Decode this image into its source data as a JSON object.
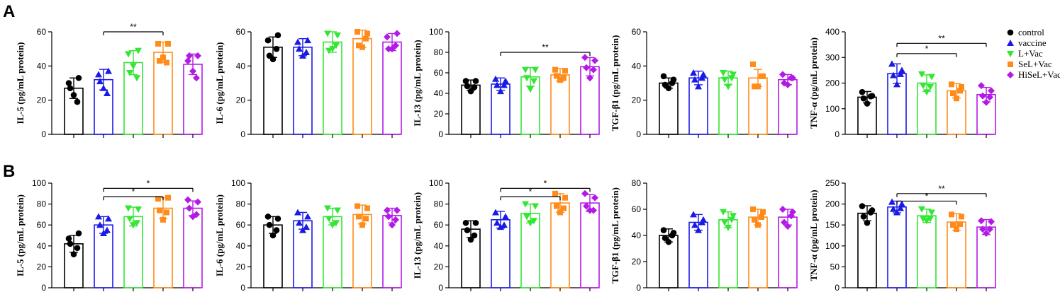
{
  "groups": [
    "control",
    "vaccine",
    "L+Vac",
    "SeL+Vac",
    "HiSeL+Vac"
  ],
  "colors": [
    "#000000",
    "#1a1ae6",
    "#33e633",
    "#ff8c1a",
    "#b31ae6"
  ],
  "markers": [
    "circle",
    "triangle-up",
    "triangle-down",
    "square",
    "diamond"
  ],
  "rows": [
    {
      "label": "A"
    },
    {
      "label": "B"
    }
  ],
  "chart_data": [
    {
      "row": 0,
      "col": 0,
      "type": "bar",
      "ylabel": "IL-5 (pg/mL protein)",
      "ylim": [
        0,
        60
      ],
      "ticks": [
        0,
        20,
        40,
        60
      ],
      "means": [
        27,
        32,
        42,
        48,
        41
      ],
      "sd": [
        6,
        6,
        7,
        6,
        6
      ],
      "points": [
        [
          23,
          30,
          33,
          27,
          19
        ],
        [
          27,
          35,
          37,
          31,
          24
        ],
        [
          40,
          47,
          49,
          36,
          33
        ],
        [
          45,
          53,
          53,
          43,
          42
        ],
        [
          37,
          43,
          46,
          46,
          33
        ]
      ],
      "brackets": [
        {
          "from": 1,
          "to": 3,
          "label": "**",
          "y": 60
        }
      ]
    },
    {
      "row": 0,
      "col": 1,
      "type": "bar",
      "ylabel": "IL-6 (pg/mL protein)",
      "ylim": [
        0,
        60
      ],
      "ticks": [
        0,
        20,
        40,
        60
      ],
      "means": [
        51,
        51,
        54,
        56,
        54
      ],
      "sd": [
        6,
        5,
        6,
        5,
        5
      ],
      "points": [
        [
          44,
          55,
          58,
          46,
          50
        ],
        [
          46,
          54,
          55,
          50,
          48
        ],
        [
          50,
          59,
          58,
          49,
          52
        ],
        [
          51,
          60,
          59,
          52,
          56
        ],
        [
          50,
          57,
          59,
          50,
          52
        ]
      ],
      "brackets": []
    },
    {
      "row": 0,
      "col": 2,
      "type": "bar",
      "ylabel": "IL-13 (pg/mL protein)",
      "ylim": [
        0,
        100
      ],
      "ticks": [
        0,
        20,
        40,
        60,
        80,
        100
      ],
      "means": [
        48,
        49,
        56,
        58,
        66
      ],
      "sd": [
        5,
        6,
        9,
        6,
        9
      ],
      "points": [
        [
          42,
          52,
          52,
          47,
          46
        ],
        [
          42,
          54,
          52,
          48,
          48
        ],
        [
          44,
          63,
          63,
          55,
          52
        ],
        [
          53,
          63,
          62,
          57,
          55
        ],
        [
          55,
          75,
          72,
          65,
          63
        ]
      ],
      "brackets": [
        {
          "from": 1,
          "to": 4,
          "label": "**",
          "y": 80
        }
      ]
    },
    {
      "row": 0,
      "col": 3,
      "type": "bar",
      "ylabel": "TGF-β1 (pg/mL protein)",
      "ylim": [
        0,
        60
      ],
      "ticks": [
        0,
        20,
        40,
        60
      ],
      "means": [
        30,
        33,
        33,
        33,
        32
      ],
      "sd": [
        3,
        4,
        4,
        5,
        3
      ],
      "points": [
        [
          27,
          34,
          32,
          29,
          30
        ],
        [
          28,
          36,
          35,
          32,
          33
        ],
        [
          28,
          36,
          35,
          32,
          33
        ],
        [
          28,
          41,
          34,
          28,
          34
        ],
        [
          29,
          35,
          33,
          30,
          33
        ]
      ],
      "brackets": []
    },
    {
      "row": 0,
      "col": 4,
      "type": "bar",
      "ylabel": "TNF-α (pg/mL protein)",
      "ylim": [
        0,
        400
      ],
      "ticks": [
        0,
        100,
        200,
        300,
        400
      ],
      "means": [
        145,
        237,
        200,
        170,
        155
      ],
      "sd": [
        22,
        38,
        32,
        28,
        28
      ],
      "points": [
        [
          120,
          165,
          150,
          140,
          148
        ],
        [
          195,
          275,
          250,
          230,
          235
        ],
        [
          165,
          235,
          225,
          190,
          185
        ],
        [
          140,
          195,
          185,
          160,
          170
        ],
        [
          125,
          190,
          170,
          150,
          145
        ]
      ],
      "brackets": [
        {
          "from": 1,
          "to": 4,
          "label": "**",
          "y": 355
        },
        {
          "from": 1,
          "to": 3,
          "label": "*",
          "y": 315
        }
      ]
    },
    {
      "row": 1,
      "col": 0,
      "type": "bar",
      "ylabel": "IL-5 (pg/mL protein)",
      "ylim": [
        0,
        100
      ],
      "ticks": [
        0,
        20,
        40,
        60,
        80,
        100
      ],
      "means": [
        42,
        60,
        68,
        76,
        76
      ],
      "sd": [
        8,
        8,
        9,
        10,
        7
      ],
      "points": [
        [
          32,
          47,
          52,
          42,
          38
        ],
        [
          52,
          68,
          66,
          60,
          55
        ],
        [
          60,
          76,
          75,
          66,
          62
        ],
        [
          65,
          85,
          86,
          74,
          72
        ],
        [
          68,
          84,
          82,
          76,
          70
        ]
      ],
      "brackets": [
        {
          "from": 1,
          "to": 4,
          "label": "*",
          "y": 95
        },
        {
          "from": 1,
          "to": 3,
          "label": "*",
          "y": 87
        }
      ]
    },
    {
      "row": 1,
      "col": 1,
      "type": "bar",
      "ylabel": "IL-6 (pg/mL protein)",
      "ylim": [
        0,
        100
      ],
      "ticks": [
        0,
        20,
        40,
        60,
        80,
        100
      ],
      "means": [
        60,
        64,
        68,
        70,
        69
      ],
      "sd": [
        8,
        8,
        8,
        9,
        7
      ],
      "points": [
        [
          50,
          68,
          66,
          60,
          55
        ],
        [
          55,
          72,
          68,
          62,
          58
        ],
        [
          60,
          76,
          74,
          66,
          62
        ],
        [
          60,
          78,
          76,
          68,
          66
        ],
        [
          60,
          74,
          74,
          68,
          65
        ]
      ],
      "brackets": []
    },
    {
      "row": 1,
      "col": 2,
      "type": "bar",
      "ylabel": "IL-13 (pg/mL protein)",
      "ylim": [
        0,
        100
      ],
      "ticks": [
        0,
        20,
        40,
        60,
        80,
        100
      ],
      "means": [
        56,
        65,
        71,
        81,
        81
      ],
      "sd": [
        8,
        8,
        9,
        9,
        8
      ],
      "points": [
        [
          46,
          62,
          62,
          55,
          50
        ],
        [
          58,
          72,
          68,
          62,
          60
        ],
        [
          62,
          80,
          78,
          68,
          64
        ],
        [
          72,
          90,
          86,
          78,
          76
        ],
        [
          74,
          90,
          86,
          78,
          74
        ]
      ],
      "brackets": [
        {
          "from": 1,
          "to": 4,
          "label": "*",
          "y": 95
        },
        {
          "from": 1,
          "to": 3,
          "label": "*",
          "y": 87
        }
      ]
    },
    {
      "row": 1,
      "col": 3,
      "type": "bar",
      "ylabel": "TGF-β1 (pg/mL protein)",
      "ylim": [
        0,
        80
      ],
      "ticks": [
        0,
        20,
        40,
        60,
        80
      ],
      "means": [
        40,
        50,
        52,
        54,
        54
      ],
      "sd": [
        5,
        6,
        6,
        6,
        6
      ],
      "points": [
        [
          35,
          44,
          42,
          38,
          40
        ],
        [
          44,
          56,
          52,
          48,
          50
        ],
        [
          46,
          58,
          55,
          50,
          52
        ],
        [
          48,
          60,
          58,
          52,
          54
        ],
        [
          47,
          60,
          58,
          50,
          55
        ]
      ],
      "brackets": []
    },
    {
      "row": 1,
      "col": 4,
      "type": "bar",
      "ylabel": "TNF-α (pg/mL protein)",
      "ylim": [
        0,
        250
      ],
      "ticks": [
        0,
        50,
        100,
        150,
        200,
        250
      ],
      "means": [
        178,
        193,
        172,
        157,
        145
      ],
      "sd": [
        18,
        14,
        16,
        20,
        18
      ],
      "points": [
        [
          155,
          195,
          185,
          170,
          180
        ],
        [
          180,
          205,
          200,
          188,
          190
        ],
        [
          160,
          188,
          180,
          165,
          165
        ],
        [
          140,
          175,
          170,
          150,
          152
        ],
        [
          130,
          160,
          158,
          140,
          140
        ]
      ],
      "brackets": [
        {
          "from": 1,
          "to": 4,
          "label": "**",
          "y": 225
        },
        {
          "from": 1,
          "to": 3,
          "label": "*",
          "y": 207
        }
      ]
    }
  ]
}
